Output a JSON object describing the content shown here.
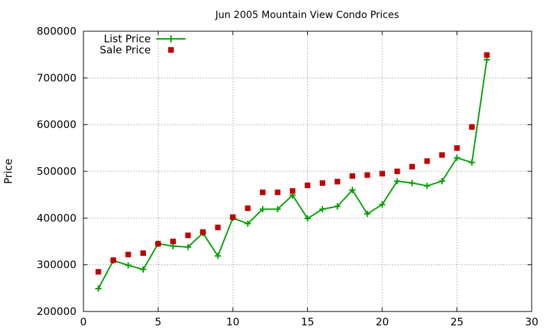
{
  "chart_data": {
    "type": "line",
    "title": "Jun 2005 Mountain View Condo Prices",
    "xlabel": "",
    "ylabel": "Price",
    "xlim": [
      0,
      30
    ],
    "ylim": [
      200000,
      800000
    ],
    "x_ticks": [
      0,
      5,
      10,
      15,
      20,
      25,
      30
    ],
    "y_ticks": [
      200000,
      300000,
      400000,
      500000,
      600000,
      700000,
      800000
    ],
    "x_tick_labels": [
      "0",
      "5",
      "10",
      "15",
      "20",
      "25",
      "30"
    ],
    "y_tick_labels": [
      "200000",
      "300000",
      "400000",
      "500000",
      "600000",
      "700000",
      "800000"
    ],
    "grid": true,
    "legend_position": "top-left",
    "x": [
      1,
      2,
      3,
      4,
      5,
      6,
      7,
      8,
      9,
      10,
      11,
      12,
      13,
      14,
      15,
      16,
      17,
      18,
      19,
      20,
      21,
      22,
      23,
      24,
      25,
      26,
      27
    ],
    "series": [
      {
        "name": "List Price",
        "style": "linespoints",
        "marker": "plus",
        "color": "#00a000",
        "values": [
          249000,
          309000,
          299000,
          290000,
          345000,
          340000,
          338000,
          368000,
          319000,
          400000,
          388000,
          419000,
          419000,
          449000,
          399000,
          419000,
          425000,
          460000,
          409000,
          429000,
          479000,
          475000,
          469000,
          479000,
          529000,
          519000,
          739000
        ]
      },
      {
        "name": "Sale Price",
        "style": "points",
        "marker": "square",
        "color": "#c00000",
        "values": [
          285000,
          310000,
          322000,
          325000,
          345000,
          350000,
          363000,
          370000,
          380000,
          402000,
          421000,
          455000,
          455000,
          458000,
          470000,
          475000,
          478000,
          490000,
          492000,
          495000,
          500000,
          510000,
          522000,
          535000,
          550000,
          595000,
          749000
        ]
      }
    ]
  }
}
